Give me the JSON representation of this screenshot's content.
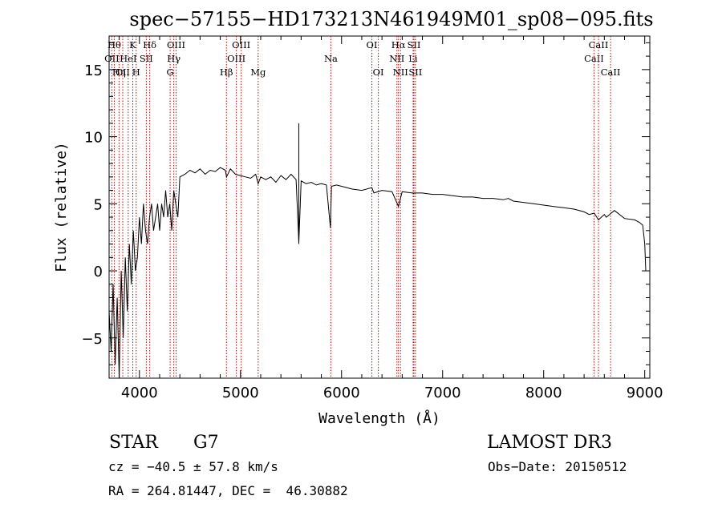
{
  "chart_data": {
    "type": "line",
    "title": "spec−57155−HD173213N461949M01_sp08−095.fits",
    "xlabel": "Wavelength (Å)",
    "ylabel": "Flux (relative)",
    "xlim": [
      3700,
      9050
    ],
    "ylim": [
      -8,
      17.5
    ],
    "xticks": [
      4000,
      5000,
      6000,
      7000,
      8000,
      9000
    ],
    "yticks": [
      -5,
      0,
      5,
      10,
      15
    ],
    "tick_labels_y": [
      "−5",
      "0",
      "5",
      "10",
      "15"
    ],
    "grid": false,
    "series": [
      {
        "name": "spectrum",
        "x": [
          3700,
          3720,
          3740,
          3760,
          3780,
          3800,
          3820,
          3840,
          3860,
          3880,
          3900,
          3920,
          3940,
          3960,
          3980,
          4000,
          4020,
          4040,
          4060,
          4080,
          4100,
          4120,
          4140,
          4160,
          4180,
          4200,
          4220,
          4240,
          4260,
          4280,
          4300,
          4320,
          4340,
          4360,
          4380,
          4400,
          4450,
          4500,
          4550,
          4600,
          4650,
          4700,
          4750,
          4800,
          4850,
          4862,
          4900,
          4950,
          5000,
          5050,
          5100,
          5150,
          5175,
          5200,
          5250,
          5300,
          5350,
          5400,
          5450,
          5500,
          5550,
          5577,
          5600,
          5650,
          5700,
          5750,
          5800,
          5850,
          5890,
          5900,
          5950,
          6000,
          6100,
          6200,
          6300,
          6320,
          6400,
          6500,
          6563,
          6600,
          6700,
          6800,
          6900,
          7000,
          7100,
          7200,
          7300,
          7400,
          7500,
          7600,
          7650,
          7700,
          7800,
          7900,
          8000,
          8100,
          8200,
          8300,
          8400,
          8450,
          8500,
          8542,
          8600,
          8620,
          8700,
          8800,
          8900,
          8950,
          8980,
          9000,
          9010
        ],
        "y": [
          -3,
          -6,
          -1,
          -7,
          -2,
          -8,
          0,
          -5,
          1,
          -3,
          2,
          -1,
          3,
          0,
          1,
          4,
          2,
          5,
          3,
          2,
          4,
          5,
          3,
          4,
          5,
          3,
          5,
          4,
          6,
          4,
          5,
          3,
          6,
          5,
          4,
          7,
          7.2,
          7.5,
          7.3,
          7.6,
          7.2,
          7.5,
          7.4,
          7.7,
          7.5,
          7.0,
          7.6,
          7.2,
          7.1,
          7.0,
          6.9,
          7.2,
          6.5,
          7.0,
          6.8,
          7.0,
          6.6,
          7.1,
          6.8,
          7.2,
          6.8,
          2.1,
          6.7,
          6.5,
          6.6,
          6.4,
          6.5,
          6.4,
          3.2,
          6.3,
          6.4,
          6.3,
          6.1,
          6.0,
          6.2,
          5.8,
          6.0,
          5.9,
          4.8,
          5.9,
          5.8,
          5.8,
          5.7,
          5.7,
          5.6,
          5.5,
          5.5,
          5.4,
          5.4,
          5.3,
          5.4,
          5.2,
          5.1,
          5.0,
          4.9,
          4.8,
          4.7,
          4.6,
          4.4,
          4.2,
          4.3,
          3.8,
          4.2,
          4.0,
          4.5,
          3.9,
          3.8,
          3.6,
          3.4,
          2.0,
          0.0
        ]
      }
    ],
    "spikes": [
      {
        "x": 5577,
        "peak": 11,
        "trough": 2
      }
    ],
    "line_markers": [
      {
        "x": 3727,
        "label": "OII",
        "row": 2
      },
      {
        "x": 3751,
        "label": "Hθ",
        "row": 1
      },
      {
        "x": 3798,
        "label": "Hη",
        "row": 3
      },
      {
        "x": 3835,
        "label": "CII",
        "row": 3
      },
      {
        "x": 3889,
        "label": "HeI",
        "row": 2
      },
      {
        "x": 3934,
        "label": "K",
        "row": 1
      },
      {
        "x": 3968,
        "label": "H",
        "row": 3
      },
      {
        "x": 4068,
        "label": "SII",
        "row": 2
      },
      {
        "x": 4102,
        "label": "Hδ",
        "row": 1
      },
      {
        "x": 4304,
        "label": "G",
        "row": 3
      },
      {
        "x": 4340,
        "label": "Hγ",
        "row": 2
      },
      {
        "x": 4363,
        "label": "OIII",
        "row": 1
      },
      {
        "x": 4861,
        "label": "Hβ",
        "row": 3
      },
      {
        "x": 4959,
        "label": "OIII",
        "row": 2
      },
      {
        "x": 5007,
        "label": "OIII",
        "row": 1
      },
      {
        "x": 5175,
        "label": "Mg",
        "row": 3
      },
      {
        "x": 5894,
        "label": "Na",
        "row": 2
      },
      {
        "x": 6300,
        "label": "OI",
        "row": 1
      },
      {
        "x": 6364,
        "label": "OI",
        "row": 3
      },
      {
        "x": 6548,
        "label": "NII",
        "row": 2
      },
      {
        "x": 6563,
        "label": "Hα",
        "row": 1
      },
      {
        "x": 6583,
        "label": "NII",
        "row": 3
      },
      {
        "x": 6708,
        "label": "Li",
        "row": 2
      },
      {
        "x": 6716,
        "label": "SII",
        "row": 1
      },
      {
        "x": 6731,
        "label": "SII",
        "row": 3
      },
      {
        "x": 8498,
        "label": "CaII",
        "row": 2
      },
      {
        "x": 8542,
        "label": "CaII",
        "row": 1
      },
      {
        "x": 8662,
        "label": "CaII",
        "row": 3
      }
    ],
    "colors": {
      "line": "#000000",
      "marker": "#cc0000",
      "axes": "#000000"
    }
  },
  "info": {
    "object_type": "STAR",
    "subclass": "G7",
    "survey": "LAMOST DR3",
    "cz": "cz = −40.5 ± 57.8 km/s",
    "obs_date": "Obs−Date: 20150512",
    "radec": "RA = 264.81447, DEC =  46.30882"
  }
}
